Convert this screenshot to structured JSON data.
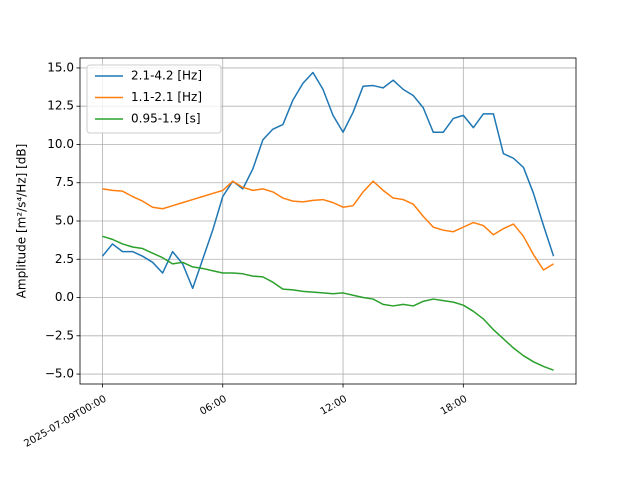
{
  "chart_data": {
    "type": "line",
    "ylabel": "Amplitude [m²/s⁴/Hz] [dB]",
    "x": [
      0,
      0.5,
      1,
      1.5,
      2,
      2.5,
      3,
      3.5,
      4,
      4.5,
      5,
      5.5,
      6,
      6.5,
      7,
      7.5,
      8,
      8.5,
      9,
      9.5,
      10,
      10.5,
      11,
      11.5,
      12,
      12.5,
      13,
      13.5,
      14,
      14.5,
      15,
      15.5,
      16,
      16.5,
      17,
      17.5,
      18,
      18.5,
      19,
      19.5,
      20,
      20.5,
      21,
      21.5,
      22,
      22.5
    ],
    "series": [
      {
        "name": "2.1-4.2 [Hz]",
        "color": "#1f77b4",
        "values": [
          2.7,
          3.5,
          3.0,
          3.0,
          2.7,
          2.3,
          1.6,
          3.0,
          2.2,
          0.6,
          2.5,
          4.4,
          6.6,
          7.6,
          7.1,
          8.4,
          10.3,
          11.0,
          11.3,
          12.9,
          14.0,
          14.7,
          13.6,
          11.9,
          10.8,
          12.1,
          13.8,
          13.85,
          13.7,
          14.2,
          13.6,
          13.2,
          12.4,
          10.8,
          10.8,
          11.7,
          11.9,
          11.1,
          12.0,
          12.0,
          9.4,
          9.1,
          8.5,
          6.8,
          4.7,
          2.7
        ]
      },
      {
        "name": "1.1-2.1 [Hz]",
        "color": "#ff7f0e",
        "values": [
          7.1,
          7.0,
          6.95,
          6.6,
          6.3,
          5.9,
          5.8,
          6.0,
          6.2,
          6.4,
          6.6,
          6.8,
          7.0,
          7.6,
          7.2,
          7.0,
          7.1,
          6.9,
          6.5,
          6.3,
          6.25,
          6.35,
          6.4,
          6.2,
          5.9,
          6.0,
          6.9,
          7.6,
          7.0,
          6.5,
          6.4,
          6.1,
          5.3,
          4.6,
          4.4,
          4.3,
          4.6,
          4.9,
          4.7,
          4.1,
          4.5,
          4.8,
          4.0,
          2.8,
          1.8,
          2.2
        ]
      },
      {
        "name": "0.95-1.9 [s]",
        "color": "#2ca02c",
        "values": [
          4.0,
          3.8,
          3.5,
          3.3,
          3.2,
          2.9,
          2.6,
          2.2,
          2.3,
          2.0,
          1.9,
          1.75,
          1.6,
          1.6,
          1.55,
          1.4,
          1.35,
          1.0,
          0.55,
          0.5,
          0.4,
          0.35,
          0.3,
          0.25,
          0.3,
          0.15,
          0.0,
          -0.1,
          -0.45,
          -0.55,
          -0.45,
          -0.55,
          -0.25,
          -0.1,
          -0.2,
          -0.3,
          -0.5,
          -0.9,
          -1.4,
          -2.1,
          -2.7,
          -3.3,
          -3.8,
          -4.2,
          -4.5,
          -4.75
        ]
      }
    ],
    "xlim": [
      -1.12,
      23.62
    ],
    "xticks": [
      {
        "value": 0,
        "label": "2025-07-09T00:00"
      },
      {
        "value": 6,
        "label": "06:00"
      },
      {
        "value": 12,
        "label": "12:00"
      },
      {
        "value": 18,
        "label": "18:00"
      }
    ],
    "ylim": [
      -5.65,
      15.65
    ],
    "yticks": [
      {
        "value": -5,
        "label": "−5.0"
      },
      {
        "value": -2.5,
        "label": "−2.5"
      },
      {
        "value": 0,
        "label": "0.0"
      },
      {
        "value": 2.5,
        "label": "2.5"
      },
      {
        "value": 5,
        "label": "5.0"
      },
      {
        "value": 7.5,
        "label": "7.5"
      },
      {
        "value": 10,
        "label": "10.0"
      },
      {
        "value": 12.5,
        "label": "12.5"
      },
      {
        "value": 15,
        "label": "15.0"
      }
    ],
    "grid": true,
    "legend": "upper left"
  }
}
